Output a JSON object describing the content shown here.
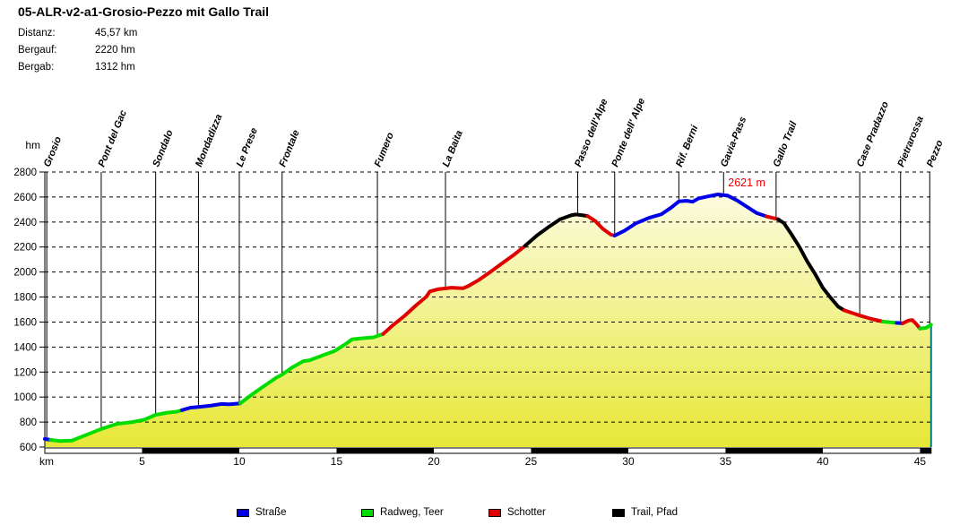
{
  "title": "05-ALR-v2-a1-Grosio-Pezzo mit Gallo Trail",
  "stats": [
    {
      "label": "Distanz:",
      "value": "45,57 km"
    },
    {
      "label": "Bergauf:",
      "value": "2220 hm"
    },
    {
      "label": "Bergab:",
      "value": "1312 hm"
    }
  ],
  "chart_data": {
    "type": "area",
    "title": "05-ALR-v2-a1-Grosio-Pezzo mit Gallo Trail",
    "xlabel": "km",
    "ylabel": "hm",
    "xlim": [
      0,
      45.57
    ],
    "ylim": [
      600,
      2800
    ],
    "x_ticks": [
      5,
      10,
      15,
      20,
      25,
      30,
      35,
      40,
      45
    ],
    "y_ticks": [
      600,
      800,
      1000,
      1200,
      1400,
      1600,
      1800,
      2000,
      2200,
      2400,
      2600,
      2800
    ],
    "grid": "dashed-horizontal",
    "peak_annotation": {
      "text": "2621 m",
      "km": 34.9,
      "elev": 2621,
      "color": "#ee0000"
    },
    "colors": {
      "area_top": "#fdfdee",
      "area_bottom": "#e7e736",
      "area_right_border": "#008080",
      "axis": "#000000"
    },
    "waypoints": [
      {
        "name": "Grosio",
        "km": 0.1
      },
      {
        "name": "Pont del Gac",
        "km": 2.9
      },
      {
        "name": "Sondalo",
        "km": 5.7
      },
      {
        "name": "Mondadizza",
        "km": 7.9
      },
      {
        "name": "Le Prese",
        "km": 10.0
      },
      {
        "name": "Frontale",
        "km": 12.2
      },
      {
        "name": "Fumero",
        "km": 17.1
      },
      {
        "name": "La Baita",
        "km": 20.6
      },
      {
        "name": "Passo dell'Alpe",
        "km": 27.4
      },
      {
        "name": "Ponte dell' Alpe",
        "km": 29.3
      },
      {
        "name": "Rif. Berni",
        "km": 32.6
      },
      {
        "name": "Gavia-Pass",
        "km": 34.9
      },
      {
        "name": "Gallo Trail",
        "km": 37.6
      },
      {
        "name": "Case Pradazzo",
        "km": 41.9
      },
      {
        "name": "Pietrarossa",
        "km": 44.0
      },
      {
        "name": "Pezzo",
        "km": 45.5
      }
    ],
    "legend": [
      {
        "label": "Straße",
        "color": "#0000e8"
      },
      {
        "label": "Radweg, Teer",
        "color": "#00dc00"
      },
      {
        "label": "Schotter",
        "color": "#e00000"
      },
      {
        "label": "Trail, Pfad",
        "color": "#000000"
      }
    ],
    "segments": [
      {
        "surface": "Straße",
        "color": "#0000e8",
        "points": [
          [
            0,
            665
          ],
          [
            0.3,
            657
          ]
        ]
      },
      {
        "surface": "Radweg, Teer",
        "color": "#00dc00",
        "points": [
          [
            0.3,
            657
          ],
          [
            0.8,
            648
          ],
          [
            1.4,
            652
          ],
          [
            2.1,
            695
          ],
          [
            2.9,
            745
          ],
          [
            3.7,
            785
          ],
          [
            4.5,
            800
          ],
          [
            5.1,
            818
          ],
          [
            5.7,
            858
          ],
          [
            6.3,
            875
          ],
          [
            6.8,
            883
          ],
          [
            7.05,
            895
          ]
        ]
      },
      {
        "surface": "Straße",
        "color": "#0000e8",
        "points": [
          [
            7.05,
            895
          ],
          [
            7.5,
            915
          ],
          [
            7.9,
            920
          ],
          [
            8.5,
            930
          ],
          [
            9.1,
            945
          ],
          [
            9.5,
            942
          ],
          [
            10.05,
            950
          ]
        ]
      },
      {
        "surface": "Radweg, Teer",
        "color": "#00dc00",
        "points": [
          [
            10.05,
            950
          ],
          [
            10.6,
            1015
          ],
          [
            11.2,
            1080
          ],
          [
            11.9,
            1155
          ],
          [
            12.2,
            1180
          ],
          [
            12.7,
            1235
          ],
          [
            13.3,
            1288
          ],
          [
            13.6,
            1293
          ],
          [
            14.2,
            1328
          ],
          [
            14.9,
            1368
          ],
          [
            15.5,
            1428
          ],
          [
            15.8,
            1462
          ],
          [
            16.3,
            1470
          ],
          [
            16.9,
            1478
          ],
          [
            17.4,
            1505
          ]
        ]
      },
      {
        "surface": "Schotter",
        "color": "#e00000",
        "points": [
          [
            17.4,
            1505
          ],
          [
            17.9,
            1575
          ],
          [
            18.5,
            1650
          ],
          [
            19.1,
            1735
          ],
          [
            19.6,
            1800
          ],
          [
            19.8,
            1845
          ],
          [
            20.2,
            1862
          ],
          [
            20.9,
            1875
          ],
          [
            21.5,
            1870
          ],
          [
            21.8,
            1890
          ],
          [
            22.3,
            1935
          ],
          [
            22.9,
            2000
          ],
          [
            23.5,
            2068
          ],
          [
            24.1,
            2135
          ],
          [
            24.7,
            2210
          ]
        ]
      },
      {
        "surface": "Trail, Pfad",
        "color": "#000000",
        "points": [
          [
            24.7,
            2210
          ],
          [
            25.3,
            2292
          ],
          [
            25.9,
            2360
          ],
          [
            26.5,
            2422
          ],
          [
            27.1,
            2455
          ],
          [
            27.3,
            2460
          ],
          [
            27.6,
            2455
          ],
          [
            27.9,
            2448
          ]
        ]
      },
      {
        "surface": "Schotter",
        "color": "#e00000",
        "points": [
          [
            27.9,
            2448
          ],
          [
            28.3,
            2408
          ],
          [
            28.7,
            2345
          ],
          [
            29.1,
            2300
          ],
          [
            29.3,
            2292
          ]
        ]
      },
      {
        "surface": "Straße",
        "color": "#0000e8",
        "points": [
          [
            29.3,
            2292
          ],
          [
            29.8,
            2330
          ],
          [
            30.4,
            2390
          ],
          [
            31.1,
            2435
          ],
          [
            31.7,
            2462
          ],
          [
            32.2,
            2515
          ],
          [
            32.6,
            2565
          ],
          [
            33.0,
            2570
          ],
          [
            33.3,
            2562
          ],
          [
            33.6,
            2588
          ],
          [
            34.1,
            2605
          ],
          [
            34.6,
            2621
          ],
          [
            35.1,
            2612
          ],
          [
            35.6,
            2572
          ],
          [
            36.1,
            2522
          ],
          [
            36.6,
            2472
          ],
          [
            37.1,
            2445
          ]
        ]
      },
      {
        "surface": "Schotter",
        "color": "#e00000",
        "points": [
          [
            37.1,
            2445
          ],
          [
            37.7,
            2422
          ]
        ]
      },
      {
        "surface": "Trail, Pfad",
        "color": "#000000",
        "points": [
          [
            37.7,
            2422
          ],
          [
            38.0,
            2392
          ],
          [
            38.4,
            2300
          ],
          [
            38.8,
            2200
          ],
          [
            39.2,
            2085
          ],
          [
            39.6,
            1985
          ],
          [
            40.0,
            1875
          ],
          [
            40.4,
            1795
          ],
          [
            40.8,
            1722
          ],
          [
            41.1,
            1694
          ]
        ]
      },
      {
        "surface": "Schotter",
        "color": "#e00000",
        "points": [
          [
            41.1,
            1694
          ],
          [
            41.6,
            1668
          ],
          [
            41.9,
            1652
          ],
          [
            42.5,
            1625
          ],
          [
            43.1,
            1603
          ]
        ]
      },
      {
        "surface": "Radweg, Teer",
        "color": "#00dc00",
        "points": [
          [
            43.1,
            1603
          ],
          [
            43.8,
            1593
          ]
        ]
      },
      {
        "surface": "Straße",
        "color": "#0000e8",
        "points": [
          [
            43.8,
            1593
          ],
          [
            44.1,
            1590
          ]
        ]
      },
      {
        "surface": "Schotter",
        "color": "#e00000",
        "points": [
          [
            44.1,
            1590
          ],
          [
            44.4,
            1612
          ],
          [
            44.6,
            1616
          ],
          [
            44.8,
            1585
          ],
          [
            45.0,
            1548
          ]
        ]
      },
      {
        "surface": "Radweg, Teer",
        "color": "#00dc00",
        "points": [
          [
            45.0,
            1548
          ],
          [
            45.3,
            1553
          ],
          [
            45.57,
            1578
          ]
        ]
      }
    ],
    "scalebar": {
      "interval_km": 5,
      "start_color": "white",
      "alt_color": "black"
    }
  }
}
